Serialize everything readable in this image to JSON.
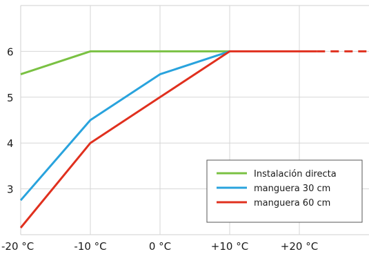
{
  "chart_data": {
    "type": "line",
    "title": "",
    "xlabel": "",
    "ylabel": "",
    "x": [
      -20,
      -10,
      0,
      10,
      20,
      30
    ],
    "x_tick_values": [
      -20,
      -10,
      0,
      10,
      20
    ],
    "x_tick_labels": [
      "-20 °C",
      "-10 °C",
      "0 °C",
      "+10 °C",
      "+20 °C"
    ],
    "y_tick_values": [
      3,
      4,
      5,
      6
    ],
    "y_tick_labels": [
      "3",
      "4",
      "5",
      "6"
    ],
    "xlim": [
      -20,
      30
    ],
    "ylim": [
      2.0,
      7.0
    ],
    "grid": true,
    "legend_position": "bottom-right",
    "series": [
      {
        "name": "Instalación directa",
        "color": "#7ac143",
        "points": [
          [
            -20,
            5.5
          ],
          [
            -10,
            6
          ],
          [
            0,
            6
          ],
          [
            10,
            6
          ]
        ]
      },
      {
        "name": "manguera 30 cm",
        "color": "#29a3dd",
        "points": [
          [
            -20,
            2.75
          ],
          [
            -10,
            4.5
          ],
          [
            0,
            5.5
          ],
          [
            10,
            6
          ]
        ]
      },
      {
        "name": "manguera 60 cm",
        "color": "#e0301e",
        "points": [
          [
            -20,
            2.15
          ],
          [
            -10,
            4
          ],
          [
            0,
            5
          ],
          [
            10,
            6
          ],
          [
            22.5,
            6
          ]
        ],
        "dashed_extension": [
          [
            22.5,
            6
          ],
          [
            30,
            6
          ]
        ]
      }
    ]
  }
}
